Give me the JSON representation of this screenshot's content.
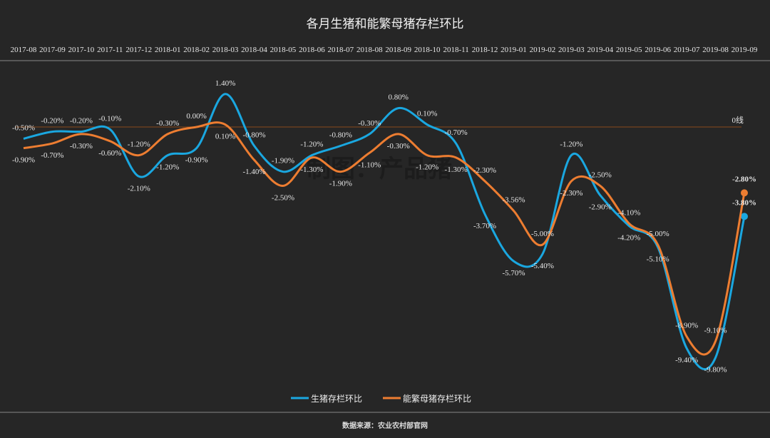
{
  "chart_data": {
    "type": "line",
    "title": "各月生猪和能繁母猪存栏环比",
    "categories": [
      "2017-08",
      "2017-09",
      "2017-10",
      "2017-11",
      "2017-12",
      "2018-01",
      "2018-02",
      "2018-03",
      "2018-04",
      "2018-05",
      "2018-06",
      "2018-07",
      "2018-08",
      "2018-09",
      "2018-10",
      "2018-11",
      "2018-12",
      "2019-01",
      "2019-02",
      "2019-03",
      "2019-04",
      "2019-05",
      "2019-06",
      "2019-07",
      "2019-08",
      "2019-09"
    ],
    "series": [
      {
        "name": "生猪存栏环比",
        "color": "#1aa7e0",
        "values": [
          -0.5,
          -0.2,
          -0.2,
          -0.1,
          -2.1,
          -1.2,
          -0.9,
          1.4,
          -0.8,
          -1.9,
          -1.2,
          -0.8,
          -0.3,
          0.8,
          0.1,
          -0.7,
          -3.7,
          -5.7,
          -5.4,
          -1.2,
          -2.9,
          -4.2,
          -5.1,
          -9.4,
          -9.8,
          -3.8
        ]
      },
      {
        "name": "能繁母猪存栏环比",
        "color": "#ed7d31",
        "values": [
          -0.9,
          -0.7,
          -0.3,
          -0.6,
          -1.2,
          -0.3,
          0.0,
          0.1,
          -1.4,
          -2.5,
          -1.3,
          -1.9,
          -1.1,
          -0.3,
          -1.2,
          -1.3,
          -2.3,
          -3.56,
          -5.0,
          -2.3,
          -2.5,
          -4.1,
          -5.0,
          -8.9,
          -9.1,
          -2.8
        ]
      }
    ],
    "unit": "%",
    "zero_line_label": "0线",
    "zero_line_color": "#8a4a1c",
    "xlabel": "",
    "ylabel": "",
    "ylim": [
      -10.5,
      2
    ],
    "grid": false,
    "legend_position": "bottom"
  },
  "source": "数据来源：农业农村部官网",
  "watermark": "制图：产品猪"
}
